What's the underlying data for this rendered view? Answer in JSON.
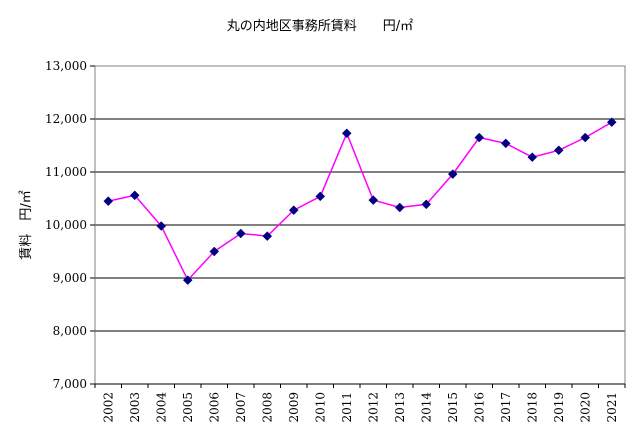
{
  "chart_data": {
    "type": "line",
    "title": "丸の内地区事務所賃料　　円/㎡",
    "ylabel": "賃料　円/㎡",
    "xlabel": "",
    "ylim": [
      7000,
      13000
    ],
    "y_ticks": [
      7000,
      8000,
      9000,
      10000,
      11000,
      12000,
      13000
    ],
    "y_tick_labels": [
      "7,000",
      "8,000",
      "9,000",
      "10,000",
      "11,000",
      "12,000",
      "13,000"
    ],
    "grid": true,
    "legend": "none",
    "categories": [
      "2002",
      "2003",
      "2004",
      "2005",
      "2006",
      "2007",
      "2008",
      "2009",
      "2010",
      "2011",
      "2012",
      "2013",
      "2014",
      "2015",
      "2016",
      "2017",
      "2018",
      "2019",
      "2020",
      "2021"
    ],
    "series": [
      {
        "values": [
          10450,
          10560,
          9980,
          8960,
          9500,
          9840,
          9790,
          10280,
          10540,
          11730,
          10470,
          10330,
          10390,
          10960,
          11650,
          11540,
          11280,
          11410,
          11650,
          11940
        ],
        "line_color": "#ff00ff",
        "marker_color": "#000080",
        "marker": "diamond"
      }
    ]
  }
}
